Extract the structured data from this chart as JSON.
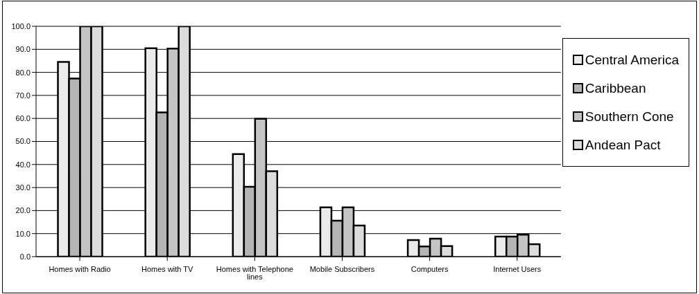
{
  "chart_data": {
    "type": "bar",
    "categories": [
      "Homes with Radio",
      "Homes with TV",
      "Homes with Telephone lines",
      "Mobile Subscribers",
      "Computers",
      "Internet Users"
    ],
    "series": [
      {
        "name": "Central America",
        "color": "#ebebeb",
        "values": [
          84.5,
          90.5,
          44.5,
          21.4,
          7.2,
          8.7
        ]
      },
      {
        "name": "Caribbean",
        "color": "#b4b4b4",
        "values": [
          77.3,
          62.6,
          30.3,
          15.6,
          4.4,
          8.7
        ]
      },
      {
        "name": "Southern Cone",
        "color": "#c4c4c4",
        "values": [
          100,
          90.3,
          59.8,
          21.4,
          7.8,
          9.5
        ]
      },
      {
        "name": "Andean Pact",
        "color": "#dcdcdc",
        "values": [
          100,
          100,
          37.1,
          13.5,
          4.6,
          5.4
        ]
      }
    ],
    "ylim": [
      0,
      100
    ],
    "yticks": [
      {
        "value": 0,
        "label": "0.0"
      },
      {
        "value": 10,
        "label": "10.0"
      },
      {
        "value": 20,
        "label": "20.0"
      },
      {
        "value": 30,
        "label": "30.0"
      },
      {
        "value": 40,
        "label": "40.0"
      },
      {
        "value": 50,
        "label": "50.0"
      },
      {
        "value": 60,
        "label": "60.0"
      },
      {
        "value": 70,
        "label": "70.0"
      },
      {
        "value": 80,
        "label": "80.0"
      },
      {
        "value": 90,
        "label": "90.0"
      },
      {
        "value": 100,
        "label": "100.0"
      }
    ],
    "grid": "y",
    "legend": "top right"
  }
}
